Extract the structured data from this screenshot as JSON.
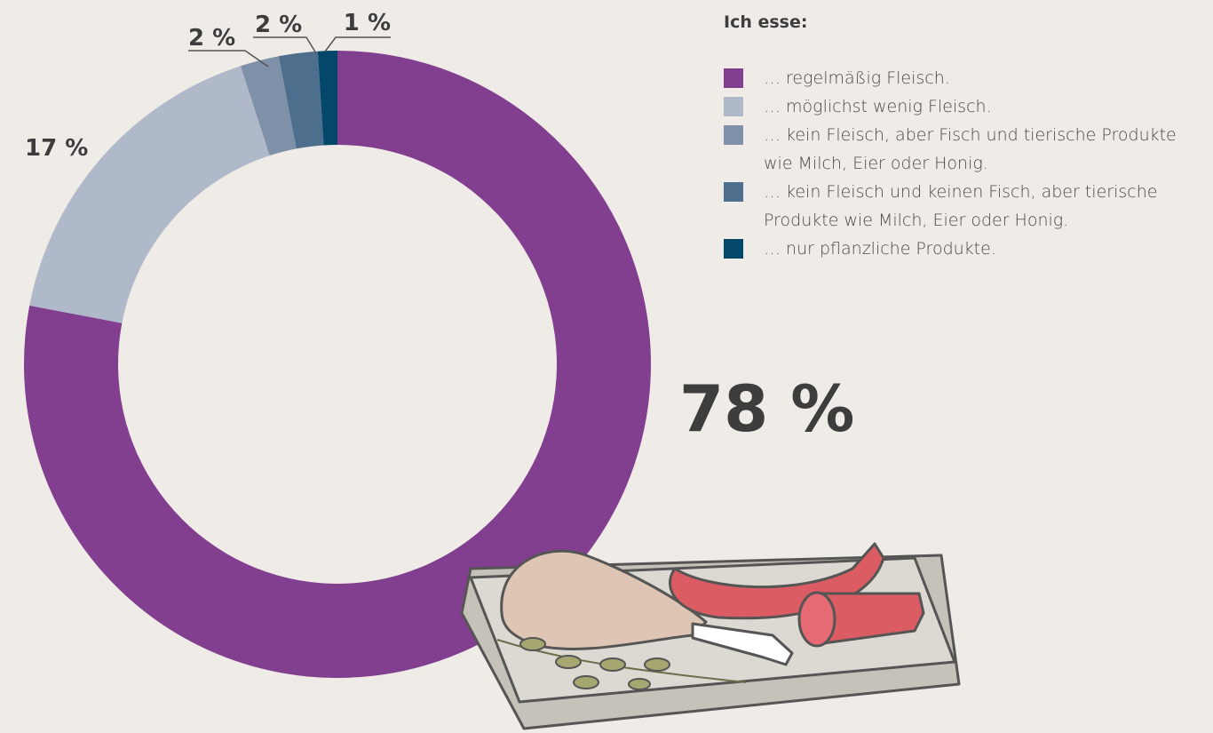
{
  "chart_data": {
    "type": "donut",
    "legend_title": "Ich esse:",
    "categories": [
      "… regelmäßig Fleisch.",
      "… möglichst wenig Fleisch.",
      "… kein Fleisch, aber Fisch und tierische Produkte wie Milch, Eier oder Honig.",
      "… kein Fleisch und keinen Fisch, aber tierische Produkte wie Milch, Eier oder Honig.",
      "… nur pflanzliche Produkte."
    ],
    "values": [
      78,
      17,
      2,
      2,
      1
    ],
    "value_labels": [
      "78 %",
      "17 %",
      "2 %",
      "2 %",
      "1 %"
    ],
    "colors": [
      "#823e8f",
      "#b0b9c9",
      "#7e91a8",
      "#4d6e8d",
      "#03476a"
    ]
  }
}
